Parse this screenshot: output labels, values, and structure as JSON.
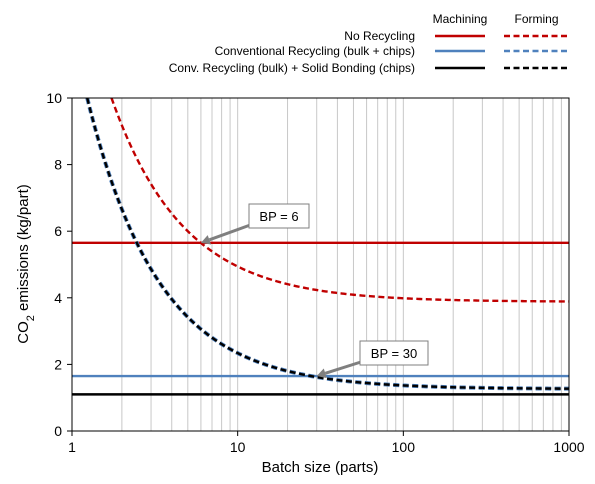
{
  "chart_data": {
    "type": "line",
    "xlabel": "Batch size (parts)",
    "ylabel_main": "CO",
    "ylabel_sub": "2",
    "ylabel_rest": " emissions (kg/part)",
    "xscale": "log",
    "xlim": [
      1,
      1000
    ],
    "ylim": [
      0,
      10
    ],
    "xticks": [
      1,
      10,
      100,
      1000
    ],
    "xtick_labels": [
      "1",
      "10",
      "100",
      "1000"
    ],
    "yticks": [
      0,
      2,
      4,
      6,
      8,
      10
    ],
    "ytick_labels": [
      "0",
      "2",
      "4",
      "6",
      "8",
      "10"
    ],
    "grid": "vertical minor gridlines on log x axis",
    "legend": {
      "placement": "top-right",
      "column_headers": [
        "Machining",
        "Forming"
      ],
      "rows": [
        {
          "label": "No Recycling",
          "color": "#c00000"
        },
        {
          "label": "Conventional Recycling (bulk + chips)",
          "color": "#4f81bd"
        },
        {
          "label": "Conv. Recycling (bulk) + Solid Bonding (chips)",
          "color": "#000000"
        }
      ]
    },
    "series": [
      {
        "key": "nr_machining",
        "process": "Machining",
        "scenario": "No Recycling",
        "color": "#c00000",
        "dash": "solid",
        "kind": "constant",
        "value": 5.65
      },
      {
        "key": "cr_machining",
        "process": "Machining",
        "scenario": "Conventional Recycling (bulk + chips)",
        "color": "#4f81bd",
        "dash": "solid",
        "kind": "constant",
        "value": 1.65
      },
      {
        "key": "sb_machining",
        "process": "Machining",
        "scenario": "Conv. Recycling (bulk) + Solid Bonding (chips)",
        "color": "#000000",
        "dash": "solid",
        "kind": "constant",
        "value": 1.1
      },
      {
        "key": "nr_forming",
        "process": "Forming",
        "scenario": "No Recycling",
        "color": "#c00000",
        "dash": "dashed",
        "kind": "fixed_plus_variable",
        "fixed": 10.6,
        "variable": 3.88
      },
      {
        "key": "cr_forming",
        "process": "Forming",
        "scenario": "Conventional Recycling (bulk + chips)",
        "color": "#4f81bd",
        "dash": "dashed",
        "kind": "fixed_plus_variable",
        "fixed": 10.8,
        "variable": 1.26
      },
      {
        "key": "sb_forming",
        "process": "Forming",
        "scenario": "Conv. Recycling (bulk) + Solid Bonding (chips)",
        "color": "#000000",
        "dash": "dashed",
        "kind": "fixed_plus_variable",
        "fixed": 10.8,
        "variable": 1.26
      }
    ],
    "annotations": [
      {
        "text": "BP = 6",
        "x": 6,
        "y": 5.65
      },
      {
        "text": "BP = 30",
        "x": 30,
        "y": 1.65
      }
    ]
  }
}
